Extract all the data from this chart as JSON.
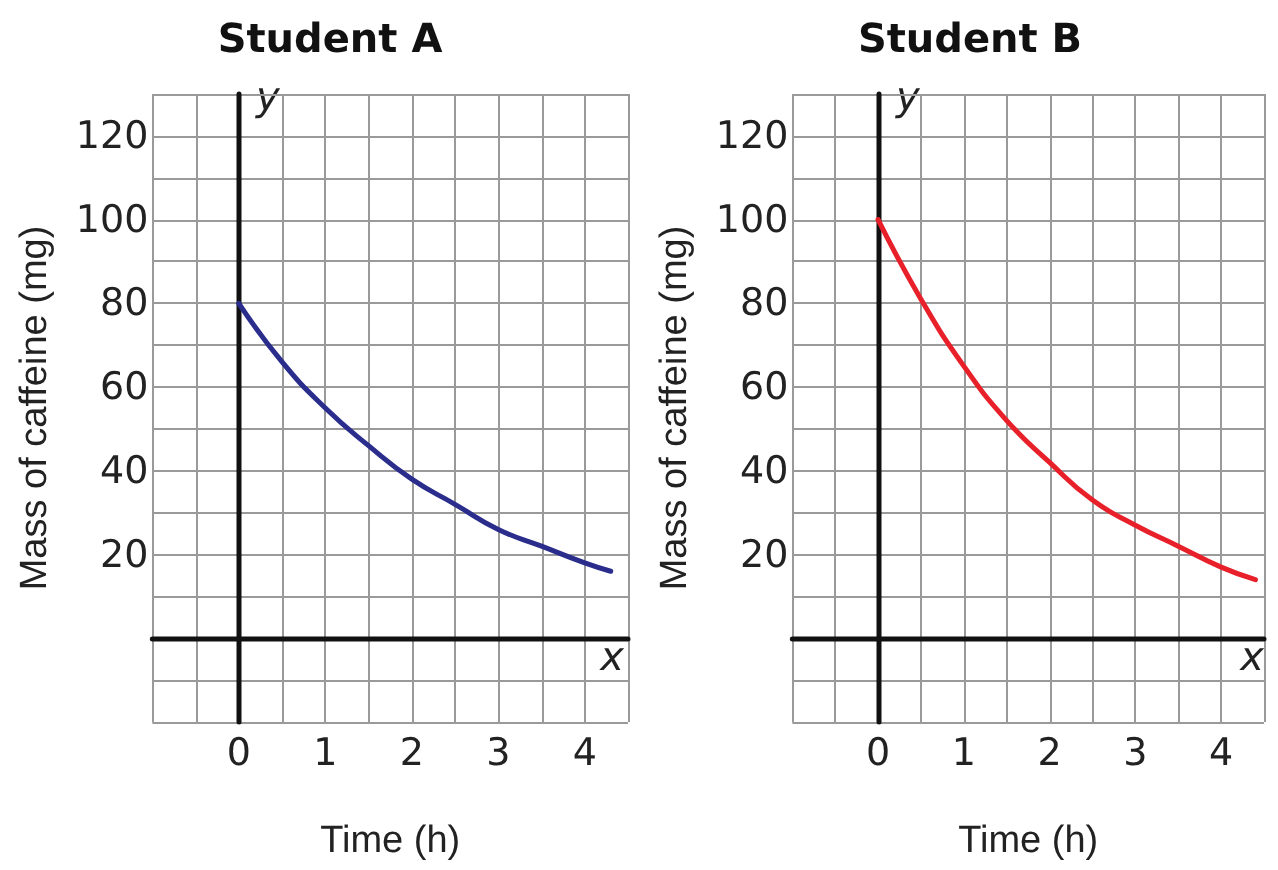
{
  "chart_data": [
    {
      "type": "line",
      "title": "Student A",
      "xlabel": "Time (h)",
      "ylabel": "Mass of caffeine (mg)",
      "annotations": [
        "x",
        "y"
      ],
      "x": [
        0,
        0.5,
        1,
        1.5,
        2,
        2.5,
        3,
        3.5,
        4,
        4.3
      ],
      "series": [
        {
          "color": "#2b2d8c",
          "values": [
            80,
            66,
            55,
            46,
            38,
            32,
            26,
            22,
            18,
            16
          ]
        }
      ],
      "xlim": [
        -1,
        4.5
      ],
      "xticks": [
        {
          "value": -1,
          "label": null
        },
        {
          "value": -0.5,
          "label": null
        },
        0,
        {
          "value": 0.5,
          "label": null
        },
        1,
        {
          "value": 1.5,
          "label": null
        },
        2,
        {
          "value": 2.5,
          "label": null
        },
        3,
        {
          "value": 3.5,
          "label": null
        },
        4,
        {
          "value": 4.5,
          "label": null
        }
      ],
      "ylim": [
        -20,
        130
      ],
      "yticks": [
        {
          "value": -20,
          "label": null
        },
        {
          "value": -10,
          "label": null
        },
        {
          "value": 0,
          "label": null
        },
        {
          "value": 10,
          "label": null
        },
        20,
        {
          "value": 30,
          "label": null
        },
        40,
        {
          "value": 50,
          "label": null
        },
        60,
        {
          "value": 70,
          "label": null
        },
        80,
        {
          "value": 90,
          "label": null
        },
        100,
        {
          "value": 110,
          "label": null
        },
        120,
        {
          "value": 130,
          "label": null
        }
      ],
      "grid": true
    },
    {
      "type": "line",
      "title": "Student B",
      "xlabel": "Time (h)",
      "ylabel": "Mass of caffeine (mg)",
      "annotations": [
        "x",
        "y"
      ],
      "x": [
        0,
        0.5,
        1,
        1.5,
        2,
        2.5,
        3,
        3.5,
        4,
        4.4
      ],
      "series": [
        {
          "color": "#e8202a",
          "values": [
            100,
            81,
            65,
            52,
            42,
            33,
            27,
            22,
            17,
            14
          ]
        }
      ],
      "xlim": [
        -1,
        4.5
      ],
      "xticks": [
        {
          "value": -1,
          "label": null
        },
        {
          "value": -0.5,
          "label": null
        },
        0,
        {
          "value": 0.5,
          "label": null
        },
        1,
        {
          "value": 1.5,
          "label": null
        },
        2,
        {
          "value": 2.5,
          "label": null
        },
        3,
        {
          "value": 3.5,
          "label": null
        },
        4,
        {
          "value": 4.5,
          "label": null
        }
      ],
      "ylim": [
        -20,
        130
      ],
      "yticks": [
        {
          "value": -20,
          "label": null
        },
        {
          "value": -10,
          "label": null
        },
        {
          "value": 0,
          "label": null
        },
        {
          "value": 10,
          "label": null
        },
        20,
        {
          "value": 30,
          "label": null
        },
        40,
        {
          "value": 50,
          "label": null
        },
        60,
        {
          "value": 70,
          "label": null
        },
        80,
        {
          "value": 90,
          "label": null
        },
        100,
        {
          "value": 110,
          "label": null
        },
        120,
        {
          "value": 130,
          "label": null
        }
      ],
      "grid": true
    }
  ]
}
